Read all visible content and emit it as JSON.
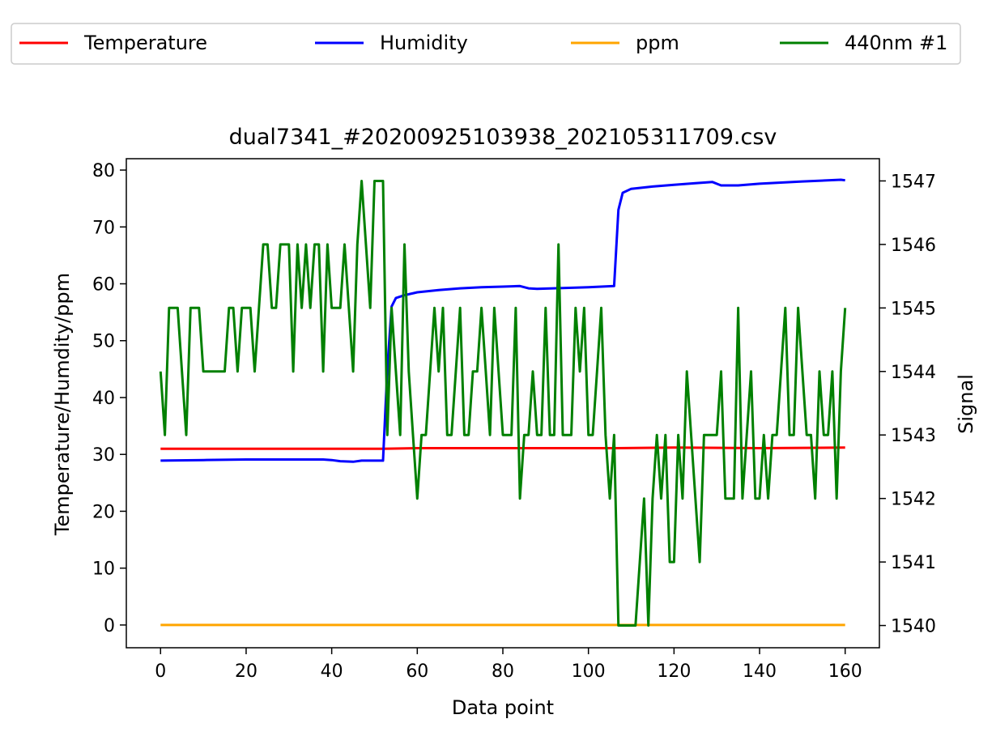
{
  "chart_data": {
    "type": "line",
    "title": "dual7341_#20200925103938_202105311709.csv",
    "xlabel": "Data point",
    "ylabel": "Temperature/Humdity/ppm",
    "ylabel_right": "Signal",
    "xlim": [
      -8,
      168
    ],
    "ylim": [
      -4,
      82
    ],
    "ylim_right": [
      1539.65,
      1547.35
    ],
    "xticks": [
      0,
      20,
      40,
      60,
      80,
      100,
      120,
      140,
      160
    ],
    "yticks": [
      0,
      10,
      20,
      30,
      40,
      50,
      60,
      70,
      80
    ],
    "yticks_right": [
      1540,
      1541,
      1542,
      1543,
      1544,
      1545,
      1546,
      1547
    ],
    "grid": false,
    "legend_position": "top, outside plot, 4 columns",
    "series": [
      {
        "name": "Temperature",
        "axis": "left",
        "color": "#ff0000",
        "points": [
          [
            0,
            31.0
          ],
          [
            20,
            31.0
          ],
          [
            40,
            31.0
          ],
          [
            52,
            31.0
          ],
          [
            60,
            31.1
          ],
          [
            80,
            31.1
          ],
          [
            106,
            31.1
          ],
          [
            120,
            31.2
          ],
          [
            140,
            31.1
          ],
          [
            160,
            31.2
          ]
        ]
      },
      {
        "name": "Humidity",
        "axis": "left",
        "color": "#0000ff",
        "points": [
          [
            0,
            28.9
          ],
          [
            10,
            29.0
          ],
          [
            20,
            29.1
          ],
          [
            30,
            29.1
          ],
          [
            38,
            29.1
          ],
          [
            40,
            29.0
          ],
          [
            42,
            28.8
          ],
          [
            45,
            28.7
          ],
          [
            47,
            28.9
          ],
          [
            52,
            28.9
          ],
          [
            53,
            45.0
          ],
          [
            54,
            56.0
          ],
          [
            55,
            57.5
          ],
          [
            57,
            58.0
          ],
          [
            60,
            58.5
          ],
          [
            65,
            58.9
          ],
          [
            70,
            59.2
          ],
          [
            75,
            59.4
          ],
          [
            80,
            59.5
          ],
          [
            84,
            59.6
          ],
          [
            86,
            59.2
          ],
          [
            88,
            59.1
          ],
          [
            100,
            59.4
          ],
          [
            106,
            59.6
          ],
          [
            107,
            73.0
          ],
          [
            108,
            76.0
          ],
          [
            110,
            76.7
          ],
          [
            115,
            77.1
          ],
          [
            120,
            77.4
          ],
          [
            125,
            77.7
          ],
          [
            129,
            77.9
          ],
          [
            131,
            77.3
          ],
          [
            135,
            77.3
          ],
          [
            140,
            77.6
          ],
          [
            150,
            78.0
          ],
          [
            159,
            78.3
          ],
          [
            160,
            78.2
          ]
        ]
      },
      {
        "name": "ppm",
        "axis": "left",
        "color": "#ffa500",
        "points": [
          [
            0,
            0
          ],
          [
            160,
            0
          ]
        ]
      },
      {
        "name": "440nm #1",
        "axis": "right",
        "color": "#008000",
        "points": [
          [
            0,
            1544
          ],
          [
            1,
            1543
          ],
          [
            2,
            1545
          ],
          [
            3,
            1545
          ],
          [
            4,
            1545
          ],
          [
            5,
            1544
          ],
          [
            6,
            1543
          ],
          [
            7,
            1545
          ],
          [
            8,
            1545
          ],
          [
            9,
            1545
          ],
          [
            10,
            1544
          ],
          [
            11,
            1544
          ],
          [
            12,
            1544
          ],
          [
            13,
            1544
          ],
          [
            14,
            1544
          ],
          [
            15,
            1544
          ],
          [
            16,
            1545
          ],
          [
            17,
            1545
          ],
          [
            18,
            1544
          ],
          [
            19,
            1545
          ],
          [
            20,
            1545
          ],
          [
            21,
            1545
          ],
          [
            22,
            1544
          ],
          [
            23,
            1545
          ],
          [
            24,
            1546
          ],
          [
            25,
            1546
          ],
          [
            26,
            1545
          ],
          [
            27,
            1545
          ],
          [
            28,
            1546
          ],
          [
            29,
            1546
          ],
          [
            30,
            1546
          ],
          [
            31,
            1544
          ],
          [
            32,
            1546
          ],
          [
            33,
            1545
          ],
          [
            34,
            1546
          ],
          [
            35,
            1545
          ],
          [
            36,
            1546
          ],
          [
            37,
            1546
          ],
          [
            38,
            1544
          ],
          [
            39,
            1546
          ],
          [
            40,
            1545
          ],
          [
            41,
            1545
          ],
          [
            42,
            1545
          ],
          [
            43,
            1546
          ],
          [
            44,
            1545
          ],
          [
            45,
            1544
          ],
          [
            46,
            1546
          ],
          [
            47,
            1547
          ],
          [
            48,
            1546
          ],
          [
            49,
            1545
          ],
          [
            50,
            1547
          ],
          [
            51,
            1547
          ],
          [
            52,
            1547
          ],
          [
            53,
            1543
          ],
          [
            54,
            1545
          ],
          [
            55,
            1544
          ],
          [
            56,
            1543
          ],
          [
            57,
            1546
          ],
          [
            58,
            1544
          ],
          [
            59,
            1543
          ],
          [
            60,
            1542
          ],
          [
            61,
            1543
          ],
          [
            62,
            1543
          ],
          [
            63,
            1544
          ],
          [
            64,
            1545
          ],
          [
            65,
            1544
          ],
          [
            66,
            1545
          ],
          [
            67,
            1543
          ],
          [
            68,
            1543
          ],
          [
            69,
            1544
          ],
          [
            70,
            1545
          ],
          [
            71,
            1543
          ],
          [
            72,
            1543
          ],
          [
            73,
            1544
          ],
          [
            74,
            1544
          ],
          [
            75,
            1545
          ],
          [
            76,
            1544
          ],
          [
            77,
            1543
          ],
          [
            78,
            1545
          ],
          [
            79,
            1544
          ],
          [
            80,
            1543
          ],
          [
            81,
            1543
          ],
          [
            82,
            1543
          ],
          [
            83,
            1545
          ],
          [
            84,
            1542
          ],
          [
            85,
            1543
          ],
          [
            86,
            1543
          ],
          [
            87,
            1544
          ],
          [
            88,
            1543
          ],
          [
            89,
            1543
          ],
          [
            90,
            1545
          ],
          [
            91,
            1543
          ],
          [
            92,
            1543
          ],
          [
            93,
            1546
          ],
          [
            94,
            1543
          ],
          [
            95,
            1543
          ],
          [
            96,
            1543
          ],
          [
            97,
            1545
          ],
          [
            98,
            1544
          ],
          [
            99,
            1545
          ],
          [
            100,
            1543
          ],
          [
            101,
            1543
          ],
          [
            102,
            1544
          ],
          [
            103,
            1545
          ],
          [
            104,
            1543
          ],
          [
            105,
            1542
          ],
          [
            106,
            1543
          ],
          [
            107,
            1540
          ],
          [
            108,
            1540
          ],
          [
            109,
            1540
          ],
          [
            110,
            1540
          ],
          [
            111,
            1540
          ],
          [
            112,
            1541
          ],
          [
            113,
            1542
          ],
          [
            114,
            1540
          ],
          [
            115,
            1542
          ],
          [
            116,
            1543
          ],
          [
            117,
            1542
          ],
          [
            118,
            1543
          ],
          [
            119,
            1541
          ],
          [
            120,
            1541
          ],
          [
            121,
            1543
          ],
          [
            122,
            1542
          ],
          [
            123,
            1544
          ],
          [
            124,
            1543
          ],
          [
            125,
            1542
          ],
          [
            126,
            1541
          ],
          [
            127,
            1543
          ],
          [
            128,
            1543
          ],
          [
            129,
            1543
          ],
          [
            130,
            1543
          ],
          [
            131,
            1544
          ],
          [
            132,
            1542
          ],
          [
            133,
            1542
          ],
          [
            134,
            1542
          ],
          [
            135,
            1545
          ],
          [
            136,
            1542
          ],
          [
            137,
            1543
          ],
          [
            138,
            1544
          ],
          [
            139,
            1542
          ],
          [
            140,
            1542
          ],
          [
            141,
            1543
          ],
          [
            142,
            1542
          ],
          [
            143,
            1543
          ],
          [
            144,
            1543
          ],
          [
            145,
            1544
          ],
          [
            146,
            1545
          ],
          [
            147,
            1543
          ],
          [
            148,
            1543
          ],
          [
            149,
            1545
          ],
          [
            150,
            1544
          ],
          [
            151,
            1543
          ],
          [
            152,
            1543
          ],
          [
            153,
            1542
          ],
          [
            154,
            1544
          ],
          [
            155,
            1543
          ],
          [
            156,
            1543
          ],
          [
            157,
            1544
          ],
          [
            158,
            1542
          ],
          [
            159,
            1544
          ],
          [
            160,
            1545
          ]
        ]
      }
    ]
  }
}
